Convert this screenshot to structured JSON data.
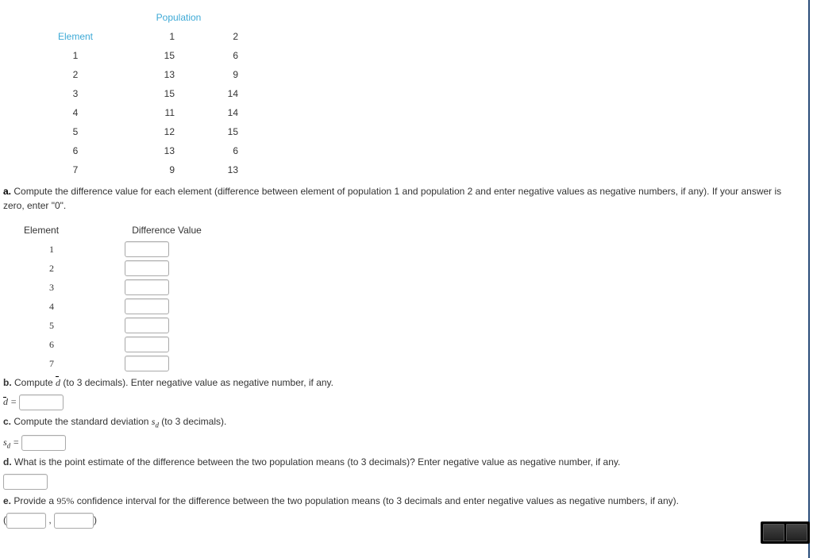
{
  "table": {
    "population_header": "Population",
    "element_header": "Element",
    "col1": "1",
    "col2": "2",
    "rows": [
      {
        "el": "1",
        "p1": "15",
        "p2": "6"
      },
      {
        "el": "2",
        "p1": "13",
        "p2": "9"
      },
      {
        "el": "3",
        "p1": "15",
        "p2": "14"
      },
      {
        "el": "4",
        "p1": "11",
        "p2": "14"
      },
      {
        "el": "5",
        "p1": "12",
        "p2": "15"
      },
      {
        "el": "6",
        "p1": "13",
        "p2": "6"
      },
      {
        "el": "7",
        "p1": "9",
        "p2": "13"
      }
    ]
  },
  "a": {
    "label": "a.",
    "text": " Compute the difference value for each element (difference between element of population 1 and population 2 and enter negative values as negative numbers, if any). If your answer is zero, enter \"0\".",
    "col_element": "Element",
    "col_diff": "Difference Value",
    "elements": [
      "1",
      "2",
      "3",
      "4",
      "5",
      "6",
      "7"
    ]
  },
  "b": {
    "label": "b.",
    "text_before": " Compute ",
    "dbar": "d",
    "text_after": " (to 3 decimals). Enter negative value as negative number, if any.",
    "eq_lhs": "d",
    "eq_sym": " = "
  },
  "c": {
    "label": "c.",
    "text_before": " Compute the standard deviation ",
    "sd": "s",
    "sd_sub": "d",
    "text_after": " (to 3 decimals).",
    "eq_sym": " = "
  },
  "d": {
    "label": "d.",
    "text": " What is the point estimate of the difference between the two population means (to 3 decimals)? Enter negative value as negative number, if any."
  },
  "e": {
    "label": "e.",
    "text_before": " Provide a ",
    "pct": "95%",
    "text_after": " confidence interval for the difference between the two population means (to 3 decimals and enter negative values as negative numbers, if any).",
    "open": "(",
    "comma": " , ",
    "close": ")"
  }
}
